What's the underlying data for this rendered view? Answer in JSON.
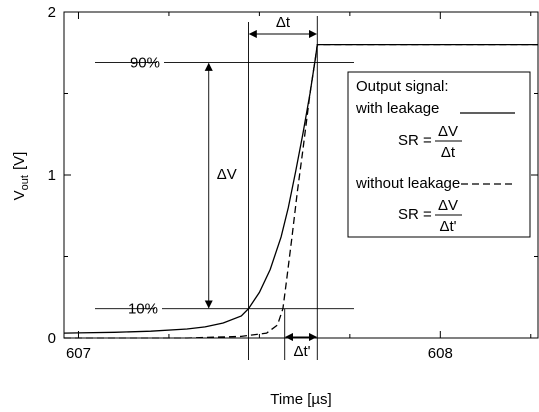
{
  "chart_data": {
    "type": "line",
    "title": "",
    "xlabel": "Time [µs]",
    "ylabel_main": "V",
    "ylabel_sub": "out",
    "ylabel_unit": "[V]",
    "xlim": [
      606.96,
      608.27
    ],
    "ylim": [
      0,
      2
    ],
    "x_ticks": [
      {
        "value": 607,
        "label": "607"
      },
      {
        "value": 608,
        "label": "608"
      }
    ],
    "y_ticks": [
      {
        "value": 0,
        "label": "0"
      },
      {
        "value": 1,
        "label": "1"
      },
      {
        "value": 2,
        "label": "2"
      }
    ],
    "grid": false,
    "series": [
      {
        "style": "solid",
        "x": [
          606.96,
          607.0,
          607.1,
          607.2,
          607.3,
          607.35,
          607.4,
          607.45,
          607.47,
          607.5,
          607.53,
          607.56,
          607.58,
          607.6,
          607.62,
          607.64,
          607.655,
          607.66,
          607.675,
          607.7,
          608.27
        ],
        "y": [
          0.03,
          0.031,
          0.035,
          0.042,
          0.055,
          0.068,
          0.092,
          0.135,
          0.18,
          0.28,
          0.42,
          0.62,
          0.8,
          1.02,
          1.25,
          1.5,
          1.72,
          1.8,
          1.8,
          1.8,
          1.8
        ]
      },
      {
        "style": "dashed",
        "x": [
          606.96,
          607.3,
          607.45,
          607.52,
          607.55,
          607.565,
          607.575,
          607.59,
          607.605,
          607.62,
          607.64,
          607.655,
          607.66,
          607.675,
          608.27
        ],
        "y": [
          0.0,
          0.0,
          0.01,
          0.03,
          0.08,
          0.18,
          0.35,
          0.62,
          0.9,
          1.15,
          1.5,
          1.72,
          1.8,
          1.8,
          1.8
        ]
      }
    ],
    "annotations": {
      "level_90_label": "90%",
      "level_90_value": 1.69,
      "level_10_label": "10%",
      "level_10_value": 0.18,
      "delta_v_label": "ΔV",
      "delta_v_x": 607.36,
      "delta_t_label": "Δt",
      "delta_t_start": 607.47,
      "delta_t_end": 607.66,
      "delta_t_prime_label": "Δt'",
      "delta_t_prime_start": 607.57,
      "delta_t_prime_end": 607.66
    },
    "legend": {
      "placement": "right",
      "heading_line1": "Output signal:",
      "heading_line2": "with leakage",
      "sr_label": "SR =",
      "sr1_num": "ΔV",
      "sr1_den": "Δt",
      "without_label": "without leakage",
      "sr2_num": "ΔV",
      "sr2_den": "Δt'"
    }
  }
}
